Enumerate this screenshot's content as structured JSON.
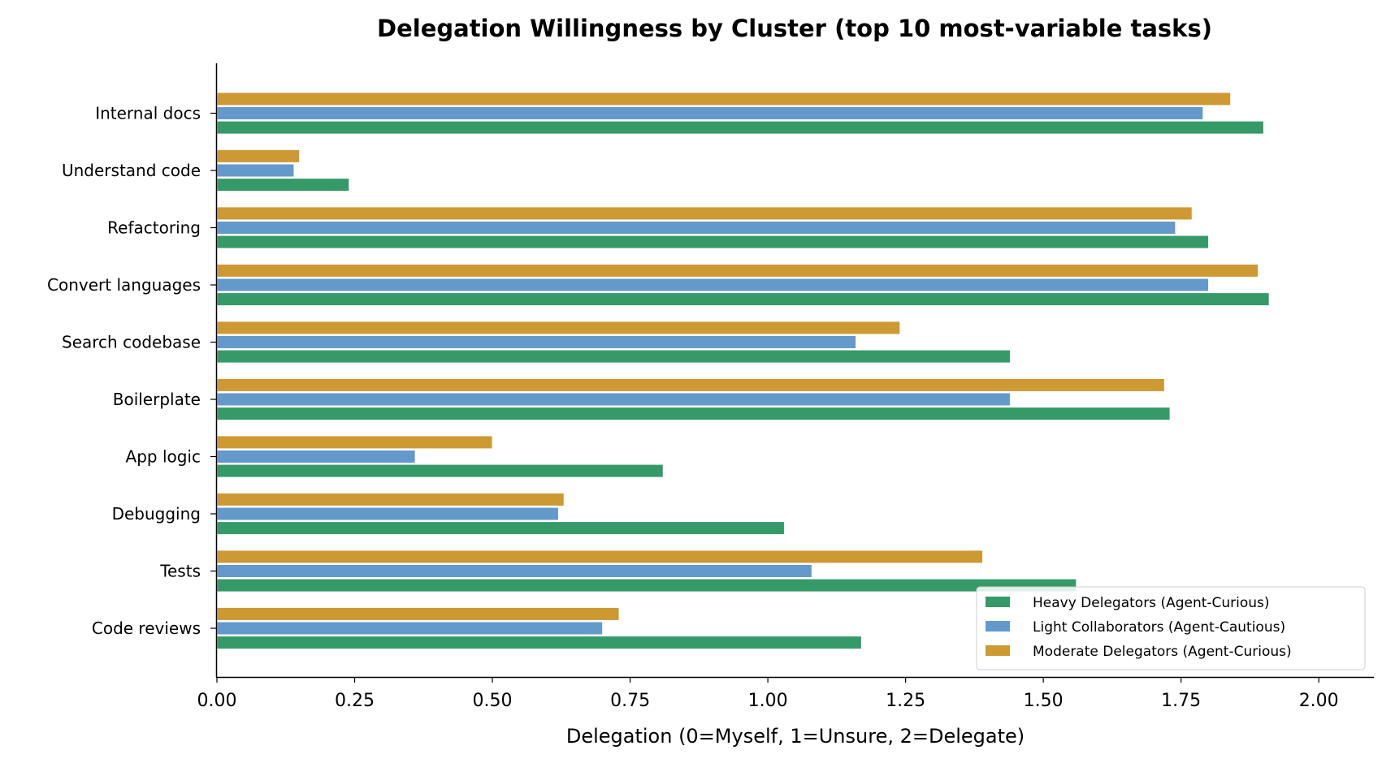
{
  "chart_data": {
    "type": "bar",
    "orientation": "horizontal",
    "title": "Delegation Willingness by Cluster (top 10 most-variable tasks)",
    "xlabel": "Delegation (0=Myself, 1=Unsure, 2=Delegate)",
    "ylabel": "",
    "xlim": [
      0,
      2.1
    ],
    "xticks": [
      "0.00",
      "0.25",
      "0.50",
      "0.75",
      "1.00",
      "1.25",
      "1.50",
      "1.75",
      "2.00"
    ],
    "grid": false,
    "legend_position": "bottom-right",
    "categories": [
      "Internal docs",
      "Understand code",
      "Refactoring",
      "Convert languages",
      "Search codebase",
      "Boilerplate",
      "App logic",
      "Debugging",
      "Tests",
      "Code reviews"
    ],
    "series": [
      {
        "name": "Heavy Delegators (Agent-Curious)",
        "color": "#359a67",
        "values": [
          1.9,
          0.24,
          1.8,
          1.91,
          1.44,
          1.73,
          0.81,
          1.03,
          1.56,
          1.17
        ]
      },
      {
        "name": "Light Collaborators (Agent-Cautious)",
        "color": "#6399cb",
        "values": [
          1.79,
          0.14,
          1.74,
          1.8,
          1.16,
          1.44,
          0.36,
          0.62,
          1.08,
          0.7
        ]
      },
      {
        "name": "Moderate Delegators (Agent-Curious)",
        "color": "#cc9933",
        "values": [
          1.84,
          0.15,
          1.77,
          1.89,
          1.24,
          1.72,
          0.5,
          0.63,
          1.39,
          0.73
        ]
      }
    ]
  }
}
